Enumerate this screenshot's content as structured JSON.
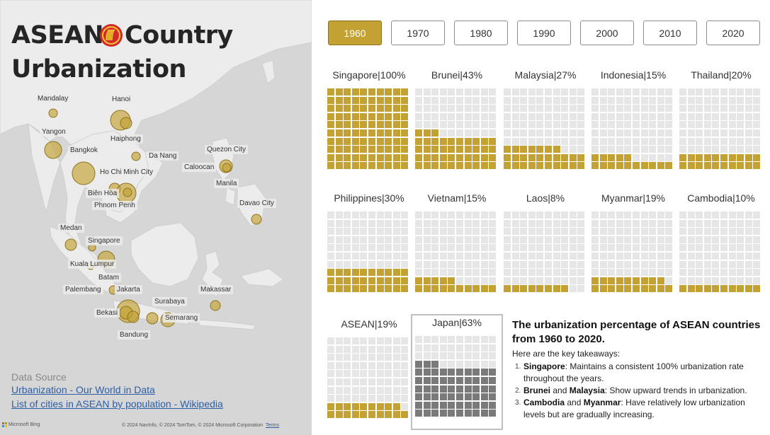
{
  "title": {
    "word1": "ASEAN",
    "word2": "Country",
    "line2": "Urbanization"
  },
  "cities": [
    {
      "name": "Mandalay"
    },
    {
      "name": "Hanoi"
    },
    {
      "name": "Yangon"
    },
    {
      "name": "Haiphong"
    },
    {
      "name": "Bangkok"
    },
    {
      "name": "Da Nang"
    },
    {
      "name": "Quezon City"
    },
    {
      "name": "Caloocan"
    },
    {
      "name": "Ho Chi Minh City"
    },
    {
      "name": "Manila"
    },
    {
      "name": "Biên Hòa"
    },
    {
      "name": "Phnom Penh"
    },
    {
      "name": "Davao City"
    },
    {
      "name": "Medan"
    },
    {
      "name": "Singapore"
    },
    {
      "name": "Kuala Lumpur"
    },
    {
      "name": "Batam"
    },
    {
      "name": "Palembang"
    },
    {
      "name": "Jakarta"
    },
    {
      "name": "Makassar"
    },
    {
      "name": "Surabaya"
    },
    {
      "name": "Bekasi"
    },
    {
      "name": "Semarang"
    },
    {
      "name": "Bandung"
    }
  ],
  "data_source": {
    "title": "Data Source",
    "link1": "Urbanization - Our World in Data",
    "link2": "List of cities in ASEAN by population - Wikipedia"
  },
  "map_footer": {
    "bing": "Microsoft Bing",
    "copyright": "© 2024 NavInfo, © 2024 TomTom, © 2024 Microsoft Corporation",
    "terms": "Terms"
  },
  "years": [
    "1960",
    "1970",
    "1980",
    "1990",
    "2000",
    "2010",
    "2020"
  ],
  "selected_year": "1960",
  "colors": {
    "accent": "#c4a133",
    "empty": "#e6e6e6",
    "japan": "#7a7a7a",
    "map_bg": "#d6d6d6",
    "land": "#ececec"
  },
  "countries": [
    {
      "label": "Singapore|100%",
      "value": 100
    },
    {
      "label": "Brunei|43%",
      "value": 43
    },
    {
      "label": "Malaysia|27%",
      "value": 27
    },
    {
      "label": "Indonesia|15%",
      "value": 15
    },
    {
      "label": "Thailand|20%",
      "value": 20
    },
    {
      "label": "Philippines|30%",
      "value": 30
    },
    {
      "label": "Vietnam|15%",
      "value": 15
    },
    {
      "label": "Laos|8%",
      "value": 8
    },
    {
      "label": "Myanmar|19%",
      "value": 19
    },
    {
      "label": "Cambodia|10%",
      "value": 10
    },
    {
      "label": "ASEAN|19%",
      "value": 19
    },
    {
      "label": "Japan|63%",
      "value": 63
    }
  ],
  "takeaways": {
    "heading": "The urbanization percentage of ASEAN countries from 1960 to 2020.",
    "intro": "Here are the key takeaways:",
    "items": [
      {
        "n": "1.",
        "b1": "Singapore",
        "t1": ": Maintains a consistent 100% urbanization rate throughout the years.",
        "b2": "",
        "t2": ""
      },
      {
        "n": "2.",
        "b1": "Brunei",
        "t1": " and ",
        "b2": "Malaysia",
        "t2": ": Show upward trends in urbanization."
      },
      {
        "n": "3.",
        "b1": "Cambodia",
        "t1": " and ",
        "b2": "Myanmar",
        "t2": ": Have relatively low urbanization levels but are gradually increasing."
      }
    ]
  }
}
